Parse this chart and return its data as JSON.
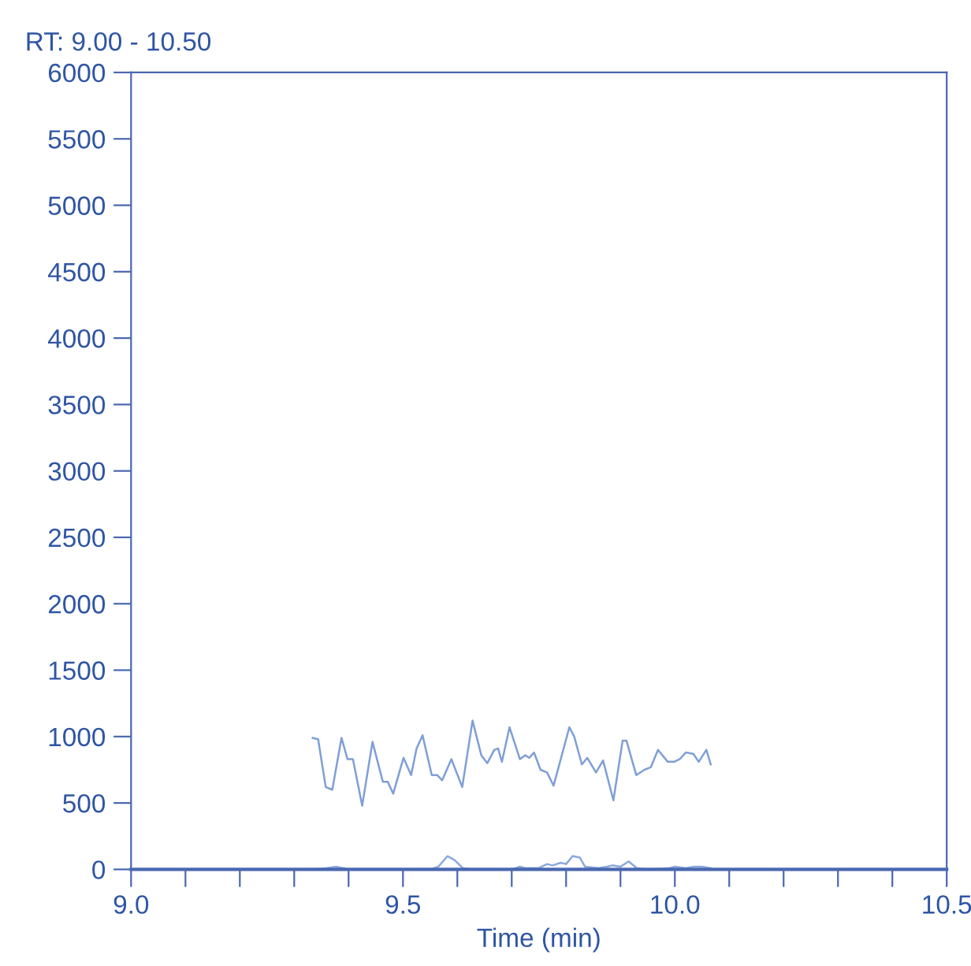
{
  "chart_data": {
    "type": "line",
    "title": "RT: 9.00 - 10.50",
    "xlabel": "Time (min)",
    "xlim": [
      9.0,
      10.5
    ],
    "xticks": [
      {
        "value": 9.0,
        "label": "9.0"
      },
      {
        "value": 9.1,
        "label": null
      },
      {
        "value": 9.2,
        "label": null
      },
      {
        "value": 9.3,
        "label": null
      },
      {
        "value": 9.4,
        "label": null
      },
      {
        "value": 9.5,
        "label": "9.5"
      },
      {
        "value": 9.6,
        "label": null
      },
      {
        "value": 9.7,
        "label": null
      },
      {
        "value": 9.8,
        "label": null
      },
      {
        "value": 9.9,
        "label": null
      },
      {
        "value": 10.0,
        "label": "10.0"
      },
      {
        "value": 10.1,
        "label": null
      },
      {
        "value": 10.2,
        "label": null
      },
      {
        "value": 10.3,
        "label": null
      },
      {
        "value": 10.4,
        "label": null
      },
      {
        "value": 10.5,
        "label": "10.5"
      }
    ],
    "ylim": [
      0,
      6000
    ],
    "yticks": [
      0,
      500,
      1000,
      1500,
      2000,
      2500,
      3000,
      3500,
      4000,
      4500,
      5000,
      5500,
      6000
    ],
    "grid": false,
    "marker": "none",
    "line_style": "solid",
    "series": [
      {
        "color": "#7f9fd6",
        "x": [
          9.334,
          9.344,
          9.358,
          9.37,
          9.387,
          9.398,
          9.408,
          9.425,
          9.444,
          9.463,
          9.472,
          9.482,
          9.501,
          9.515,
          9.525,
          9.536,
          9.553,
          9.563,
          9.572,
          9.589,
          9.609,
          9.628,
          9.644,
          9.655,
          9.668,
          9.675,
          9.682,
          9.696,
          9.715,
          9.725,
          9.732,
          9.741,
          9.753,
          9.765,
          9.777,
          9.806,
          9.815,
          9.829,
          9.839,
          9.855,
          9.868,
          9.887,
          9.904,
          9.911,
          9.929,
          9.944,
          9.956,
          9.969,
          9.987,
          9.999,
          10.009,
          10.02,
          10.034,
          10.044,
          10.058,
          10.066
        ],
        "values": [
          990,
          980,
          620,
          600,
          990,
          830,
          830,
          480,
          960,
          660,
          660,
          570,
          840,
          710,
          910,
          1010,
          710,
          710,
          670,
          830,
          620,
          1120,
          860,
          800,
          900,
          910,
          810,
          1070,
          830,
          860,
          840,
          880,
          750,
          730,
          630,
          1070,
          1000,
          790,
          840,
          730,
          820,
          520,
          970,
          970,
          710,
          750,
          770,
          900,
          810,
          810,
          830,
          880,
          870,
          810,
          900,
          790
        ]
      },
      {
        "color": "#8aa8dc",
        "x": [
          9.334,
          9.36,
          9.377,
          9.39,
          9.4,
          9.55,
          9.565,
          9.582,
          9.595,
          9.61,
          9.63,
          9.7,
          9.715,
          9.725,
          9.75,
          9.765,
          9.775,
          9.79,
          9.8,
          9.812,
          9.825,
          9.835,
          9.86,
          9.875,
          9.885,
          9.9,
          9.915,
          9.93,
          9.95,
          9.99,
          10.0,
          10.02,
          10.035,
          10.05,
          10.066
        ],
        "values": [
          0,
          10,
          20,
          10,
          0,
          0,
          20,
          100,
          70,
          10,
          0,
          0,
          20,
          10,
          10,
          40,
          30,
          50,
          40,
          100,
          90,
          20,
          10,
          20,
          30,
          20,
          60,
          10,
          0,
          10,
          20,
          10,
          20,
          20,
          10
        ]
      }
    ]
  }
}
